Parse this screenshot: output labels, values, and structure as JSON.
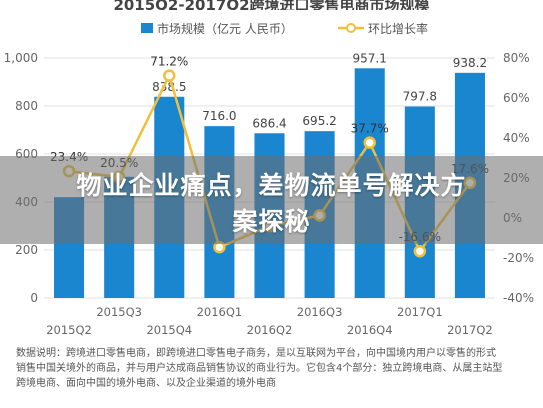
{
  "page": {
    "title_partial": "2015Q2-2017Q2跨境进口零售电商市场规模",
    "headline_line1": "物业企业痛点，差物流单号解决方",
    "headline_line2": "案探秘",
    "notes": [
      "数据说明：跨境进口零售电商，即跨境进口零售电子商务，是以互联网为平台，向中国境内用户以零售的形式",
      "销售中国关境外的商品，并与用户达成商品销售协议的商业行为。它包含4个部分：独立跨境电商、从属主站型",
      "跨境电商、面向中国的境外电商、以及企业渠道的境外电商"
    ]
  },
  "colors": {
    "bar": "#1a86cf",
    "line": "#f0c03c",
    "grid": "#e2e2e2",
    "banner": "#6e6e6e"
  },
  "chart_data": {
    "type": "bar",
    "title": "2015Q2-2017Q2跨境进口零售电商市场规模",
    "categories": [
      "2015Q2",
      "2015Q3",
      "2015Q4",
      "2016Q1",
      "2016Q2",
      "2016Q3",
      "2016Q4",
      "2017Q1",
      "2017Q2"
    ],
    "x_tick_labels": [
      "2015Q2",
      "2015Q3",
      "2015Q4",
      "2016Q1",
      "2016Q2",
      "2016Q3",
      "2016Q4",
      "2017Q1",
      "2017Q2"
    ],
    "series": [
      {
        "name": "市场规模（亿元 人民币）",
        "kind": "bar",
        "axis": "left",
        "values": [
          420,
          505,
          838.5,
          716.0,
          686.4,
          695.2,
          957.1,
          797.8,
          938.2
        ],
        "labels": [
          "",
          "",
          "838.5",
          "716.0",
          "686.4",
          "695.2",
          "957.1",
          "797.8",
          "938.2"
        ]
      },
      {
        "name": "环比增长率",
        "kind": "line",
        "axis": "right",
        "values": [
          23.4,
          20.5,
          71.2,
          -14.6,
          -4.1,
          1.3,
          37.7,
          -16.6,
          17.6
        ],
        "labels": [
          "23.4%",
          "20.5%",
          "71.2%",
          "",
          "",
          "",
          "37.7%",
          "-16.6%",
          "17.6%"
        ]
      }
    ],
    "y_left": {
      "min": 0,
      "max": 1000,
      "ticks": [
        0,
        200,
        400,
        600,
        800,
        1000
      ],
      "tick_labels": [
        "0",
        "200",
        "400",
        "600",
        "800",
        "1,000"
      ]
    },
    "y_right": {
      "min": -40,
      "max": 80,
      "ticks": [
        -40,
        -20,
        0,
        20,
        40,
        60,
        80
      ],
      "tick_labels": [
        "-40%",
        "-20%",
        "0%",
        "20%",
        "40%",
        "60%",
        "80%"
      ]
    },
    "grid": true,
    "legend": "top-right"
  }
}
